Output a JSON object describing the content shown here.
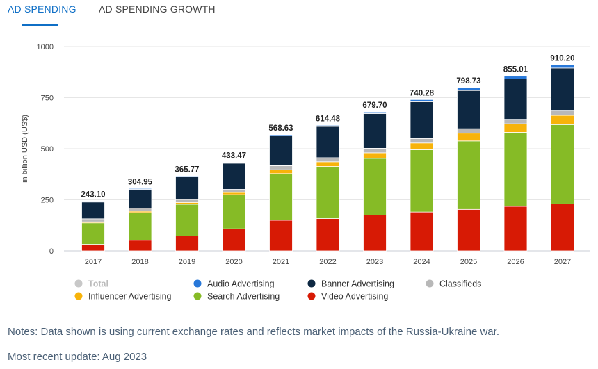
{
  "tabs": [
    {
      "label": "AD SPENDING",
      "active": true
    },
    {
      "label": "AD SPENDING GROWTH",
      "active": false
    }
  ],
  "chart_data": {
    "type": "bar",
    "stacked": true,
    "ylabel": "in billion USD (US$)",
    "ylim": [
      0,
      1000
    ],
    "yticks": [
      0,
      250,
      500,
      750,
      1000
    ],
    "grid": true,
    "legend_position": "bottom",
    "categories": [
      "2017",
      "2018",
      "2019",
      "2020",
      "2021",
      "2022",
      "2023",
      "2024",
      "2025",
      "2026",
      "2027"
    ],
    "totals": [
      243.1,
      304.95,
      365.77,
      433.47,
      568.63,
      614.48,
      679.7,
      740.28,
      798.73,
      855.01,
      910.2
    ],
    "total_labels": [
      "243.10",
      "304.95",
      "365.77",
      "433.47",
      "568.63",
      "614.48",
      "679.70",
      "740.28",
      "798.73",
      "855.01",
      "910.20"
    ],
    "series": [
      {
        "name": "Video Advertising",
        "color": "#d71a05",
        "values": [
          32,
          52,
          73,
          108,
          150,
          158,
          175,
          190,
          203,
          218,
          230
        ]
      },
      {
        "name": "Search Advertising",
        "color": "#86bb26",
        "values": [
          105,
          135,
          155,
          167,
          228,
          255,
          278,
          305,
          335,
          362,
          388
        ]
      },
      {
        "name": "Influencer Advertising",
        "color": "#f7b30a",
        "values": [
          5,
          7,
          9,
          11,
          19,
          23,
          27,
          33,
          38,
          42,
          45
        ]
      },
      {
        "name": "Classifieds",
        "color": "#b8b8b8",
        "values": [
          15,
          15,
          15,
          15,
          20,
          20,
          22,
          22,
          22,
          22,
          22
        ]
      },
      {
        "name": "Banner Advertising",
        "color": "#0e2842",
        "values": [
          82,
          92,
          110,
          128,
          146,
          153,
          170,
          180,
          187,
          198,
          210
        ]
      },
      {
        "name": "Audio Advertising",
        "color": "#2878d9",
        "values": [
          4,
          4,
          4,
          4,
          5,
          5.5,
          7.7,
          10.3,
          13.7,
          13,
          15.2
        ]
      }
    ],
    "legend": [
      {
        "name": "Total",
        "color": "#c8c8c8",
        "muted": true
      },
      {
        "name": "Audio Advertising",
        "color": "#2878d9"
      },
      {
        "name": "Banner Advertising",
        "color": "#0e2842"
      },
      {
        "name": "Classifieds",
        "color": "#b8b8b8"
      },
      {
        "name": "Influencer Advertising",
        "color": "#f7b30a"
      },
      {
        "name": "Search Advertising",
        "color": "#86bb26"
      },
      {
        "name": "Video Advertising",
        "color": "#d71a05"
      }
    ]
  },
  "notes": {
    "line1": "Notes: Data shown is using current exchange rates and reflects market impacts of the Russia-Ukraine war.",
    "line2": "Most recent update: Aug 2023"
  }
}
